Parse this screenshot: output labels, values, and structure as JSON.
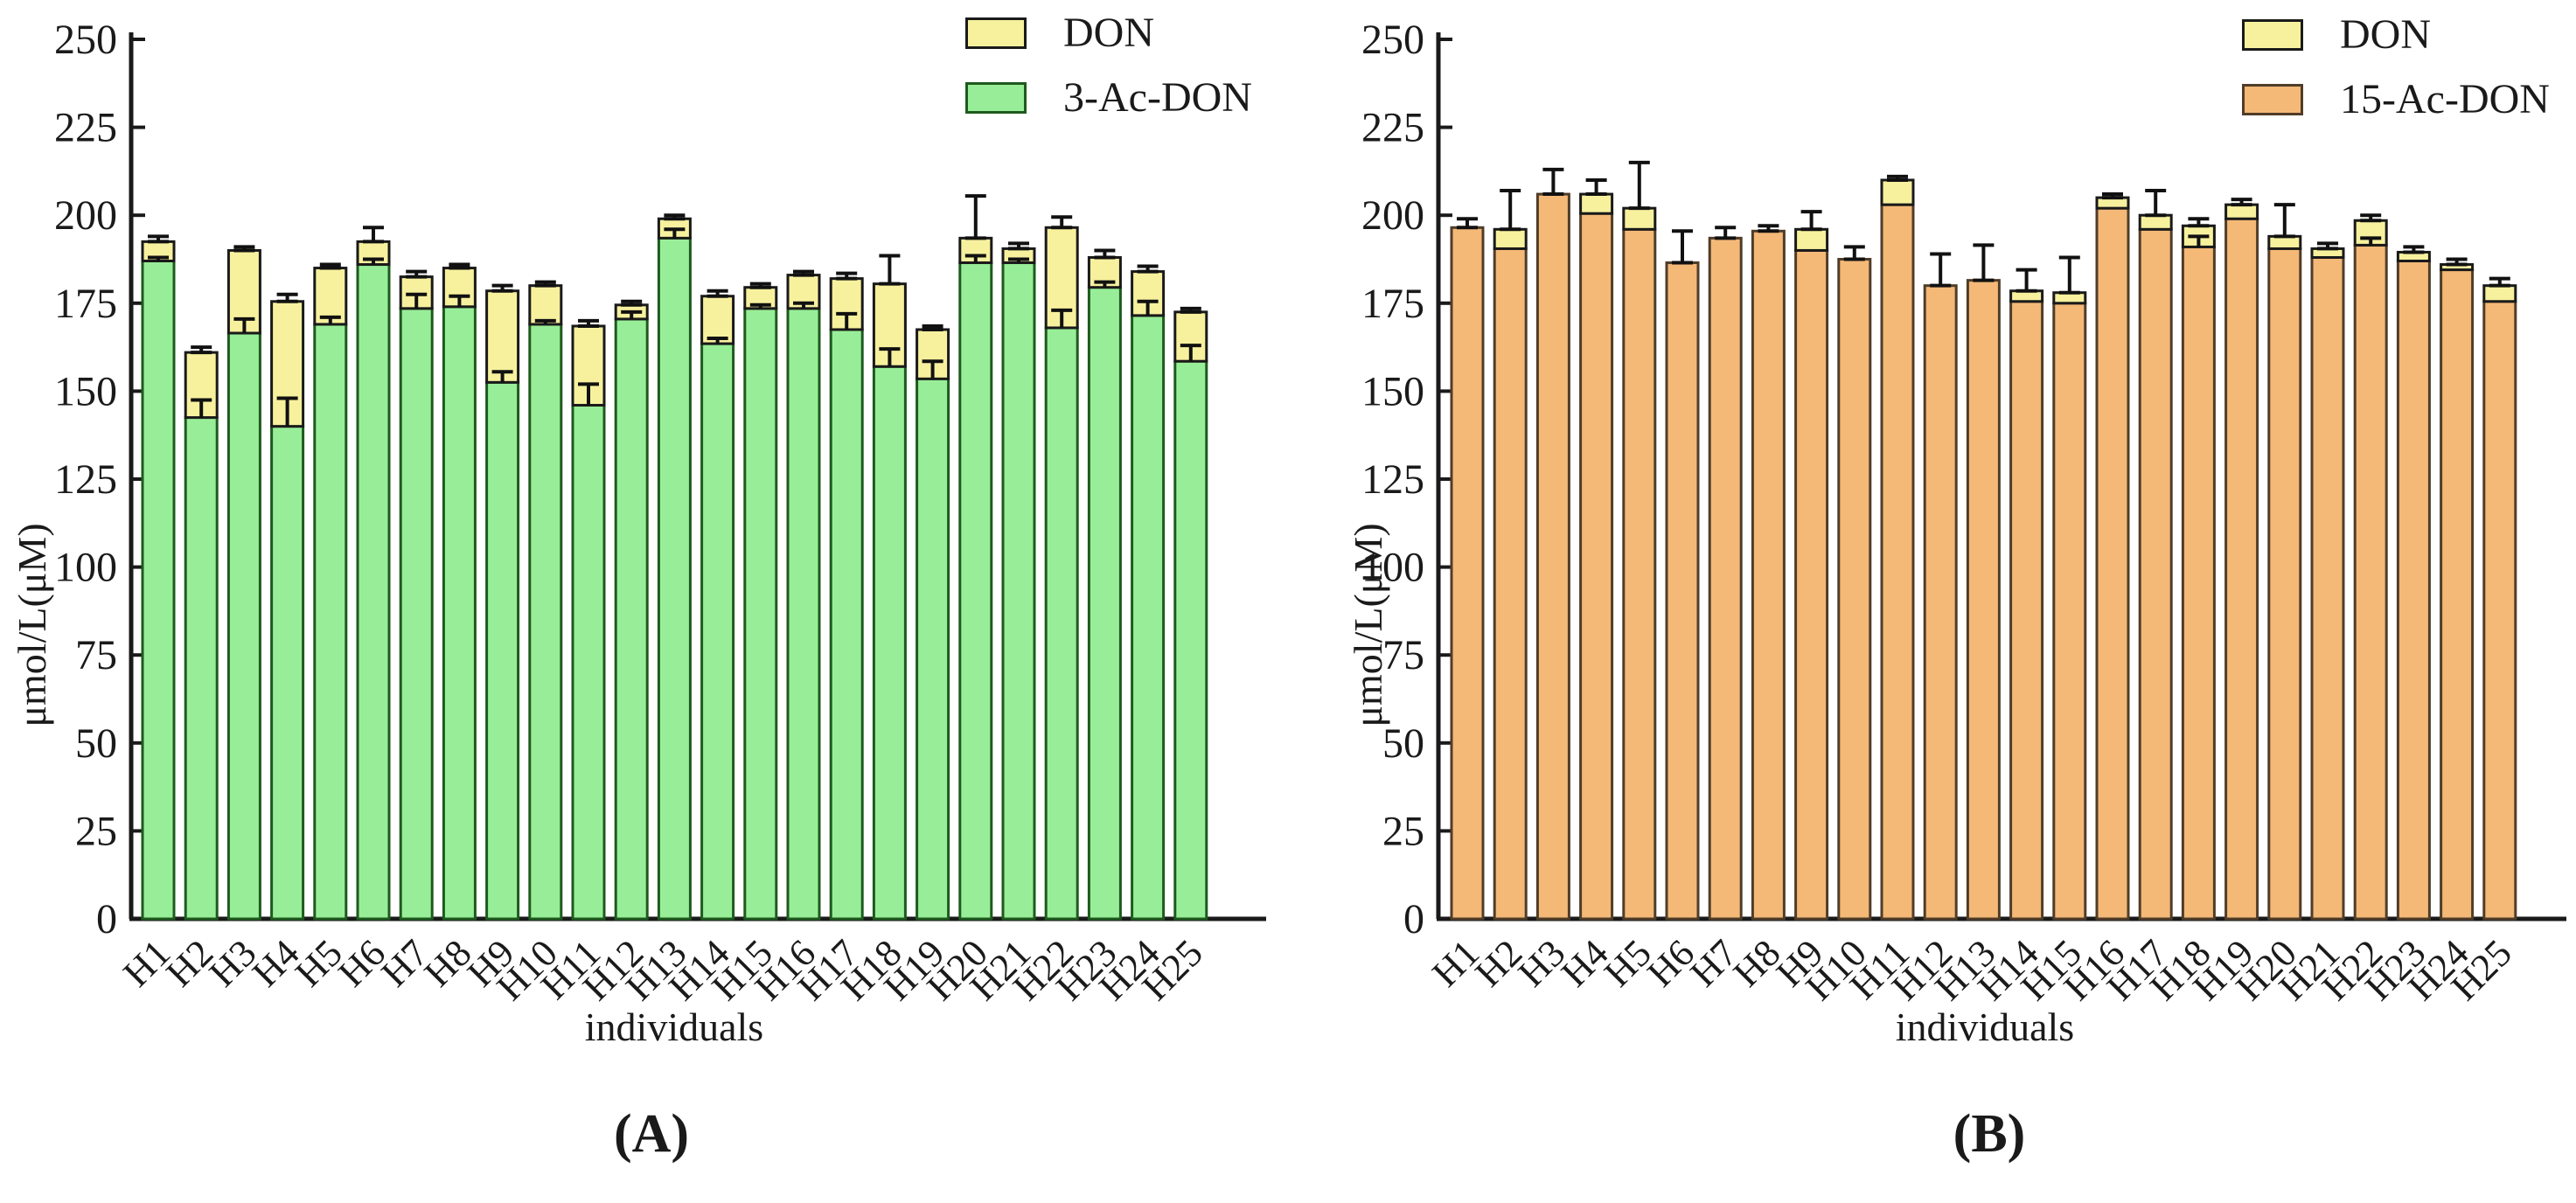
{
  "figure": {
    "background": "#ffffff",
    "axis_color": "#1a1a1a",
    "error_bar_color": "#111111"
  },
  "chart_data": [
    {
      "panel": "A",
      "type": "bar",
      "stacked": true,
      "caption": "(A)",
      "xlabel": "individuals",
      "ylabel": "μmol/L(μM)",
      "ylim": [
        0,
        250
      ],
      "yticks": [
        0,
        25,
        50,
        75,
        100,
        125,
        150,
        175,
        200,
        225,
        250
      ],
      "grid": false,
      "legend_position": "top-right",
      "categories": [
        "H1",
        "H2",
        "H3",
        "H4",
        "H5",
        "H6",
        "H7",
        "H8",
        "H9",
        "H10",
        "H11",
        "H12",
        "H13",
        "H14",
        "H15",
        "H16",
        "H17",
        "H18",
        "H19",
        "H20",
        "H21",
        "H22",
        "H23",
        "H24",
        "H25"
      ],
      "legend": [
        {
          "label": "DON",
          "color": "#F7F19E",
          "border": "#1a1a1a"
        },
        {
          "label": "3-Ac-DON",
          "color": "#98EE98",
          "border": "#1e5a1e"
        }
      ],
      "series": [
        {
          "name": "3-Ac-DON",
          "role": "base",
          "color": "#98EE98",
          "border": "#1e5a1e",
          "values": [
            187,
            142.5,
            166.5,
            140,
            169,
            186,
            173.5,
            174,
            152.5,
            169,
            146,
            170.5,
            193.5,
            163.5,
            173.5,
            173.5,
            167.5,
            157,
            153.5,
            186.5,
            186.5,
            168,
            179.5,
            171.5,
            158.5
          ],
          "err": [
            1,
            5,
            4,
            8,
            2,
            1.5,
            4,
            3,
            3,
            1,
            6,
            2,
            2.5,
            1.5,
            1,
            1.5,
            4.5,
            5,
            5,
            2,
            1,
            5,
            1.5,
            4,
            4.5
          ]
        },
        {
          "name": "DON",
          "role": "top",
          "color": "#F7F19E",
          "border": "#1a1a1a",
          "values": [
            5.5,
            18.5,
            23.5,
            35.5,
            16,
            6.5,
            9,
            11,
            26,
            11,
            22.5,
            4,
            5.5,
            13.5,
            6,
            9.5,
            14.5,
            23.5,
            14,
            7,
            4,
            28.5,
            8.5,
            12.5,
            14
          ]
        }
      ],
      "totals": [
        192.5,
        161,
        190,
        175.5,
        185,
        192.5,
        182.5,
        185,
        178.5,
        180,
        168.5,
        174.5,
        199,
        177,
        179.5,
        183,
        182,
        180.5,
        167.5,
        193.5,
        190.5,
        196.5,
        188,
        184,
        172.5
      ],
      "total_err": [
        1.5,
        1.5,
        1,
        2,
        1,
        4,
        1.5,
        1,
        1.5,
        1,
        1.5,
        1,
        1,
        1.5,
        1,
        1,
        1.5,
        8,
        1,
        12,
        1.5,
        3,
        2,
        1.5,
        1
      ]
    },
    {
      "panel": "B",
      "type": "bar",
      "stacked": true,
      "caption": "(B)",
      "xlabel": "individuals",
      "ylabel": "μmol/L(μM)",
      "ylim": [
        0,
        250
      ],
      "yticks": [
        0,
        25,
        50,
        75,
        100,
        125,
        150,
        175,
        200,
        225,
        250
      ],
      "grid": false,
      "legend_position": "top-right",
      "categories": [
        "H1",
        "H2",
        "H3",
        "H4",
        "H5",
        "H6",
        "H7",
        "H8",
        "H9",
        "H10",
        "H11",
        "H12",
        "H13",
        "H14",
        "H15",
        "H16",
        "H17",
        "H18",
        "H19",
        "H20",
        "H21",
        "H22",
        "H23",
        "H24",
        "H25"
      ],
      "legend": [
        {
          "label": "DON",
          "color": "#F7F19E",
          "border": "#1a1a1a"
        },
        {
          "label": "15-Ac-DON",
          "color": "#F4B877",
          "border": "#4f3d28"
        }
      ],
      "series": [
        {
          "name": "15-Ac-DON",
          "role": "base",
          "color": "#F4B877",
          "border": "#4f3d28",
          "values": [
            196.5,
            190.5,
            206,
            200.5,
            196,
            186.5,
            193.5,
            195.5,
            190,
            187.5,
            203,
            180,
            181.5,
            175.5,
            175,
            202,
            196,
            191,
            199,
            190.5,
            188,
            191.5,
            187,
            184.5,
            175.5
          ],
          "err": [
            0,
            0,
            0,
            0,
            0,
            0,
            0,
            0,
            0,
            0,
            0,
            0,
            0,
            0,
            0,
            0,
            0,
            3,
            0,
            0,
            0,
            2,
            0,
            0,
            0
          ]
        },
        {
          "name": "DON",
          "role": "top",
          "color": "#F7F19E",
          "border": "#1a1a1a",
          "values": [
            0,
            5.5,
            0,
            5.5,
            6,
            0,
            0,
            0,
            6,
            0,
            7,
            0,
            0,
            3,
            3,
            3,
            4,
            6,
            4,
            3.5,
            2.5,
            7,
            2.5,
            1.5,
            4.5
          ]
        }
      ],
      "totals": [
        196.5,
        196,
        206,
        206,
        202,
        186.5,
        193.5,
        195.5,
        196,
        187.5,
        210,
        180,
        181.5,
        178.5,
        178,
        205,
        200,
        197,
        203,
        194,
        190.5,
        198.5,
        189.5,
        186,
        180
      ],
      "total_err": [
        2.5,
        11,
        7,
        4,
        13,
        9,
        3,
        1.5,
        5,
        3.5,
        1,
        9,
        10,
        6,
        10,
        1,
        7,
        2,
        1.5,
        9,
        1.5,
        1.5,
        1.5,
        1.5,
        2
      ]
    }
  ]
}
